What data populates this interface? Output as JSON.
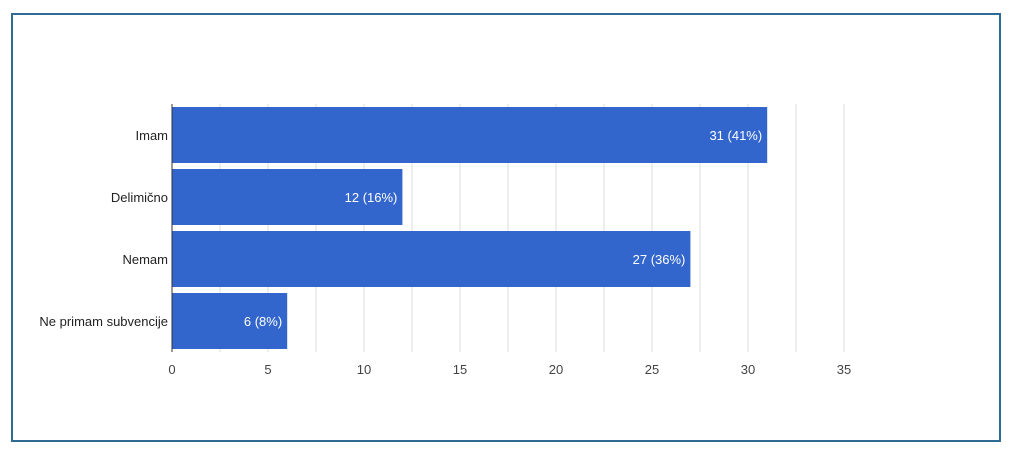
{
  "chart_data": {
    "type": "bar",
    "orientation": "horizontal",
    "categories": [
      "Imam",
      "Delimično",
      "Nemam",
      "Ne primam subvencije"
    ],
    "values": [
      31,
      12,
      27,
      6
    ],
    "data_labels": [
      "31 (41%)",
      "12 (16%)",
      "27 (36%)",
      "6 (8%)"
    ],
    "xlim": [
      0,
      35
    ],
    "x_ticks": [
      0,
      5,
      10,
      15,
      20,
      25,
      30,
      35
    ],
    "x_tick_labels": [
      "0",
      "5",
      "10",
      "15",
      "20",
      "25",
      "30",
      "35"
    ],
    "grid": true,
    "legend": "none",
    "title": "",
    "xlabel": "",
    "ylabel": ""
  },
  "colors": {
    "bar": "#3366cc",
    "frame": "#2f6b94",
    "grid": "#dddddd",
    "axis": "#333333"
  }
}
